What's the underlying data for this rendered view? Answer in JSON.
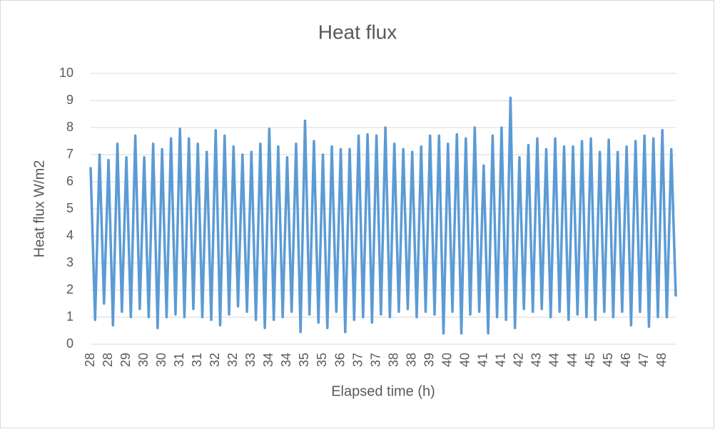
{
  "chart_data": {
    "type": "line",
    "title": "Heat flux",
    "x_label": "Elapsed time (h)",
    "y_label": "Heat flux W/m2",
    "categories": [
      "28",
      null,
      null,
      null,
      "28",
      null,
      null,
      null,
      "29",
      null,
      null,
      null,
      "30",
      null,
      null,
      null,
      "30",
      null,
      null,
      null,
      "31",
      null,
      null,
      null,
      "31",
      null,
      null,
      null,
      "32",
      null,
      null,
      null,
      "32",
      null,
      null,
      null,
      "33",
      null,
      null,
      null,
      "34",
      null,
      null,
      null,
      "34",
      null,
      null,
      null,
      "35",
      null,
      null,
      null,
      "35",
      null,
      null,
      null,
      "36",
      null,
      null,
      null,
      "37",
      null,
      null,
      null,
      "37",
      null,
      null,
      null,
      "38",
      null,
      null,
      null,
      "38",
      null,
      null,
      null,
      "39",
      null,
      null,
      null,
      "40",
      null,
      null,
      null,
      "40",
      null,
      null,
      null,
      "41",
      null,
      null,
      null,
      "41",
      null,
      null,
      null,
      "42",
      null,
      null,
      null,
      "43",
      null,
      null,
      null,
      "44",
      null,
      null,
      null,
      "44",
      null,
      null,
      null,
      "45",
      null,
      null,
      null,
      "45",
      null,
      null,
      null,
      "46",
      null,
      null,
      null,
      "47",
      null,
      null,
      null,
      "48",
      null,
      null,
      null
    ],
    "series": [
      {
        "name": "Heat flux",
        "color": "#5b9bd5",
        "values": [
          6.5,
          0.9,
          7.0,
          1.5,
          6.8,
          0.7,
          7.4,
          1.2,
          6.9,
          1.0,
          7.7,
          1.3,
          6.9,
          1.0,
          7.4,
          0.6,
          7.2,
          1.0,
          7.6,
          1.1,
          7.95,
          1.0,
          7.6,
          1.3,
          7.4,
          1.0,
          7.1,
          0.9,
          7.9,
          0.7,
          7.7,
          1.1,
          7.3,
          1.4,
          7.0,
          1.2,
          7.1,
          0.9,
          7.4,
          0.6,
          7.95,
          0.9,
          7.3,
          1.0,
          6.9,
          1.2,
          7.4,
          0.45,
          8.25,
          1.1,
          7.5,
          0.8,
          7.0,
          0.6,
          7.3,
          1.2,
          7.2,
          0.45,
          7.2,
          0.9,
          7.7,
          1.0,
          7.75,
          0.8,
          7.7,
          1.1,
          8.0,
          1.0,
          7.4,
          1.2,
          7.2,
          1.3,
          7.1,
          1.0,
          7.3,
          1.2,
          7.7,
          1.1,
          7.7,
          0.4,
          7.4,
          1.2,
          7.75,
          0.4,
          7.6,
          1.1,
          8.0,
          1.2,
          6.6,
          0.4,
          7.7,
          1.0,
          8.0,
          0.9,
          9.1,
          0.6,
          6.9,
          1.3,
          7.35,
          1.2,
          7.6,
          1.3,
          7.2,
          1.0,
          7.6,
          1.2,
          7.3,
          0.9,
          7.3,
          1.1,
          7.5,
          1.0,
          7.6,
          0.9,
          7.1,
          1.2,
          7.55,
          1.0,
          7.1,
          1.2,
          7.3,
          0.7,
          7.5,
          1.2,
          7.7,
          0.65,
          7.6,
          1.0,
          7.9,
          1.0,
          7.2,
          1.8
        ]
      }
    ],
    "ylim": [
      0,
      10
    ],
    "yticks": [
      0,
      1,
      2,
      3,
      4,
      5,
      6,
      7,
      8,
      9,
      10
    ],
    "grid": true
  }
}
